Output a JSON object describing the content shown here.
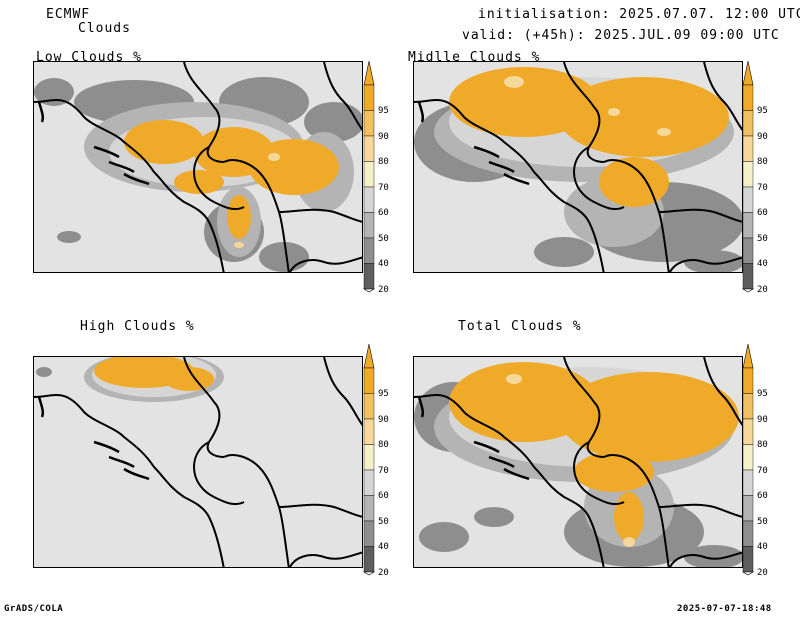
{
  "header": {
    "model": "ECMWF",
    "field": "Clouds",
    "init": "initialisation: 2025.07.07. 12:00 UTC",
    "valid": "valid: (+45h): 2025.JUL.09 09:00 UTC"
  },
  "panels": [
    {
      "title": "Low Clouds %"
    },
    {
      "title": "Midlle Clouds %"
    },
    {
      "title": "High Clouds %"
    },
    {
      "title": "Total Clouds %"
    }
  ],
  "colorbar": {
    "labels": [
      "95",
      "90",
      "80",
      "70",
      "60",
      "50",
      "40",
      "20"
    ],
    "colors": {
      "c95": "#f0aa2a",
      "c90": "#f1c064",
      "c80": "#f5d89a",
      "c70": "#f6f0c8",
      "c60": "#d6d6d6",
      "c50": "#b4b4b4",
      "c40": "#8e8e8e",
      "c20": "#5e5e5e",
      "background": "#e3e3e3"
    }
  },
  "footer": {
    "left": "GrADS/COLA",
    "right": "2025-07-07-18:48"
  }
}
